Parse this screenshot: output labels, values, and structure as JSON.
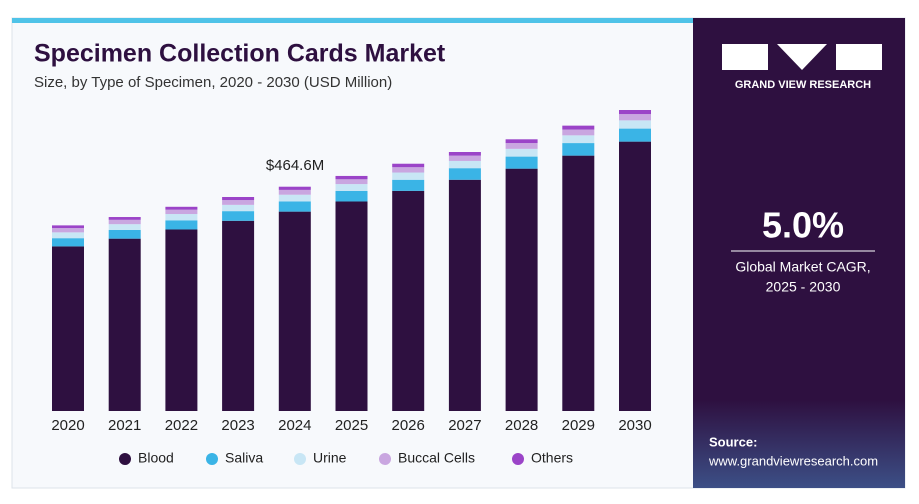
{
  "chart_data": {
    "type": "stacked-bar",
    "title": "Specimen Collection Cards Market",
    "subtitle": "Size, by Type of Specimen, 2020 - 2030 (USD Million)",
    "annotation": "$464.6M",
    "categories": [
      "2020",
      "2021",
      "2022",
      "2023",
      "2024",
      "2025",
      "2026",
      "2027",
      "2028",
      "2029",
      "2030"
    ],
    "series": [
      {
        "name": "Blood",
        "color": "#2e1040",
        "values": [
          341,
          357,
          376,
          394,
          413,
          434,
          456,
          479,
          502,
          529,
          558
        ]
      },
      {
        "name": "Saliva",
        "color": "#3ab4e6",
        "values": [
          17,
          18,
          19,
          20,
          21,
          22,
          23,
          24,
          25,
          26,
          27
        ]
      },
      {
        "name": "Urine",
        "color": "#c8e6f5",
        "values": [
          12,
          12,
          13,
          13,
          14,
          14,
          15,
          15,
          16,
          16,
          17
        ]
      },
      {
        "name": "Buccal Cells",
        "color": "#c9a6e0",
        "values": [
          9,
          9,
          9,
          10,
          10,
          10,
          11,
          11,
          12,
          12,
          13
        ]
      },
      {
        "name": "Others",
        "color": "#9b44c8",
        "values": [
          5.5,
          5.8,
          6.0,
          6.3,
          6.6,
          6.9,
          7.2,
          7.5,
          7.8,
          8.1,
          8.5
        ]
      }
    ]
  },
  "sidebar": {
    "brand": "GRAND VIEW RESEARCH",
    "cagr": "5.0%",
    "cagr_label_1": "Global Market CAGR,",
    "cagr_label_2": "2025 - 2030",
    "source_label": "Source:",
    "source_url": "www.grandviewresearch.com"
  }
}
